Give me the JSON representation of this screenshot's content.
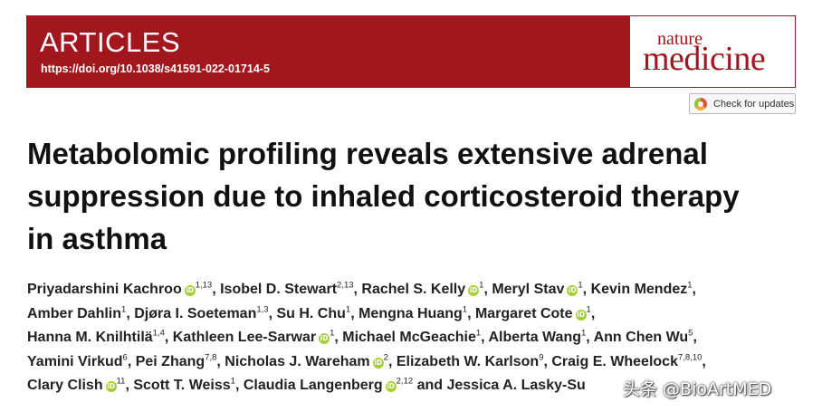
{
  "header": {
    "section_label": "ARTICLES",
    "doi": "https://doi.org/10.1038/s41591-022-01714-5",
    "brand_color": "#a2161d",
    "logo": {
      "line1": "nature",
      "line2": "medicine"
    }
  },
  "check_updates": {
    "label": "Check for updates"
  },
  "title_lines": [
    "Metabolomic profiling reveals extensive adrenal",
    "suppression due to inhaled corticosteroid therapy",
    "in asthma"
  ],
  "orcid_glyph": "iD",
  "authors": [
    {
      "name": "Priyadarshini Kachroo",
      "orcid": true,
      "aff": "1,13",
      "sep": ", "
    },
    {
      "name": "Isobel D. Stewart",
      "orcid": false,
      "aff": "2,13",
      "sep": ", "
    },
    {
      "name": "Rachel S. Kelly",
      "orcid": true,
      "aff": "1",
      "sep": ", "
    },
    {
      "name": "Meryl Stav",
      "orcid": true,
      "aff": "1",
      "sep": ", "
    },
    {
      "name": "Kevin Mendez",
      "orcid": false,
      "aff": "1",
      "sep": ","
    },
    {
      "name": "Amber Dahlin",
      "orcid": false,
      "aff": "1",
      "sep": ", "
    },
    {
      "name": "Djøra I. Soeteman",
      "orcid": false,
      "aff": "1,3",
      "sep": ", "
    },
    {
      "name": "Su H. Chu",
      "orcid": false,
      "aff": "1",
      "sep": ", "
    },
    {
      "name": "Mengna Huang",
      "orcid": false,
      "aff": "1",
      "sep": ", "
    },
    {
      "name": "Margaret Cote",
      "orcid": true,
      "aff": "1",
      "sep": ","
    },
    {
      "name": "Hanna M. Knilhtilä",
      "orcid": false,
      "aff": "1,4",
      "sep": ", "
    },
    {
      "name": "Kathleen Lee-Sarwar",
      "orcid": true,
      "aff": "1",
      "sep": ", "
    },
    {
      "name": "Michael McGeachie",
      "orcid": false,
      "aff": "1",
      "sep": ", "
    },
    {
      "name": "Alberta Wang",
      "orcid": false,
      "aff": "1",
      "sep": ", "
    },
    {
      "name": "Ann Chen Wu",
      "orcid": false,
      "aff": "5",
      "sep": ","
    },
    {
      "name": "Yamini Virkud",
      "orcid": false,
      "aff": "6",
      "sep": ", "
    },
    {
      "name": "Pei Zhang",
      "orcid": false,
      "aff": "7,8",
      "sep": ", "
    },
    {
      "name": "Nicholas J. Wareham",
      "orcid": true,
      "aff": "2",
      "sep": ", "
    },
    {
      "name": "Elizabeth W. Karlson",
      "orcid": false,
      "aff": "9",
      "sep": ", "
    },
    {
      "name": "Craig E. Wheelock",
      "orcid": false,
      "aff": "7,8,10",
      "sep": ","
    },
    {
      "name": "Clary Clish",
      "orcid": true,
      "aff": "11",
      "sep": ", "
    },
    {
      "name": "Scott T. Weiss",
      "orcid": false,
      "aff": "1",
      "sep": ", "
    },
    {
      "name": "Claudia Langenberg",
      "orcid": true,
      "aff": "2,12",
      "sep": " and "
    },
    {
      "name": "Jessica A. Lasky-Su",
      "orcid": false,
      "aff": "",
      "sep": ""
    }
  ],
  "author_line_breaks": [
    5,
    10,
    15,
    20,
    24
  ],
  "watermark": {
    "text": "头条 @BioArtMED"
  }
}
